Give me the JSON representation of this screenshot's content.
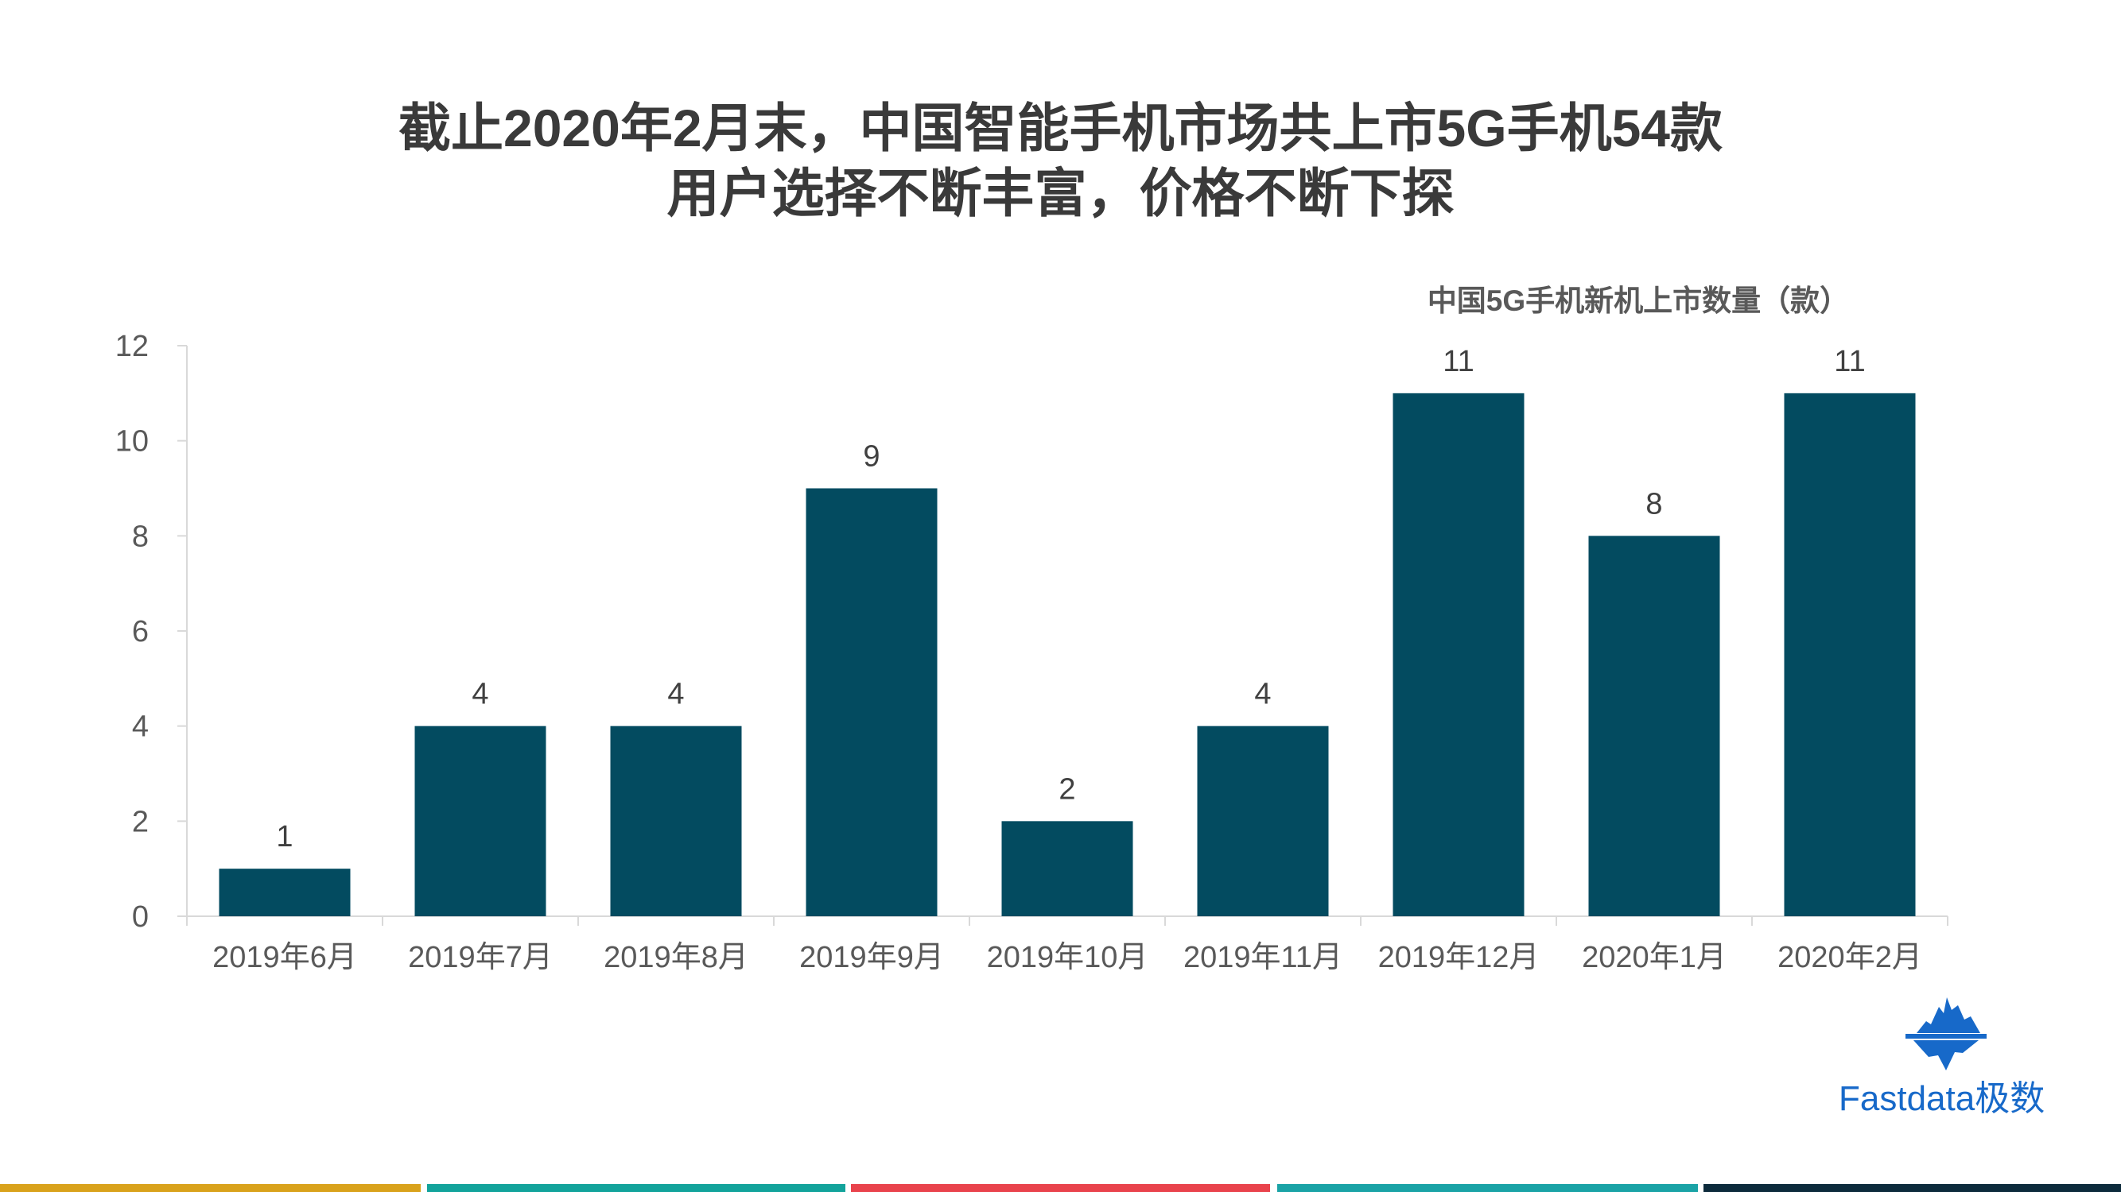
{
  "slide": {
    "title_line1": "截止2020年2月末，中国智能手机市场共上市5G手机54款",
    "title_line2": "用户选择不断丰富，价格不断下探",
    "title_color": "#3a3a3a"
  },
  "chart_data": {
    "type": "bar",
    "title": "中国5G手机新机上市数量（款）",
    "categories": [
      "2019年6月",
      "2019年7月",
      "2019年8月",
      "2019年9月",
      "2019年10月",
      "2019年11月",
      "2019年12月",
      "2020年1月",
      "2020年2月"
    ],
    "values": [
      1,
      4,
      4,
      9,
      2,
      4,
      11,
      8,
      11
    ],
    "ylim": [
      0,
      12
    ],
    "y_ticks": [
      0,
      2,
      4,
      6,
      8,
      10,
      12
    ],
    "grid": false,
    "data_labels": true,
    "bar_color": "#034b60",
    "axis_color": "#d9d9d9",
    "tick_label_color": "#595959",
    "data_label_color": "#404040"
  },
  "brand": {
    "name": "Fastdata极数",
    "icon": "iceberg-logo-icon",
    "color": "#1769c9"
  },
  "footer_stripes": [
    "#d9a21b",
    "#12a39b",
    "#e9434c",
    "#1aa3a6",
    "#0d2b3c"
  ]
}
